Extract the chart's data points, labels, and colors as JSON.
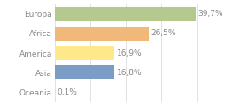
{
  "categories": [
    "Europa",
    "Africa",
    "America",
    "Asia",
    "Oceania"
  ],
  "values": [
    39.7,
    26.5,
    16.9,
    16.8,
    0.1
  ],
  "labels": [
    "39,7%",
    "26,5%",
    "16,9%",
    "16,8%",
    "0,1%"
  ],
  "bar_colors": [
    "#b5c98e",
    "#f0b97a",
    "#fde98a",
    "#7b9cc4",
    "#aaaaaa"
  ],
  "background_color": "#ffffff",
  "xlim": [
    0,
    46
  ],
  "label_fontsize": 6.5,
  "tick_fontsize": 6.5,
  "grid_color": "#dddddd",
  "text_color": "#888888"
}
